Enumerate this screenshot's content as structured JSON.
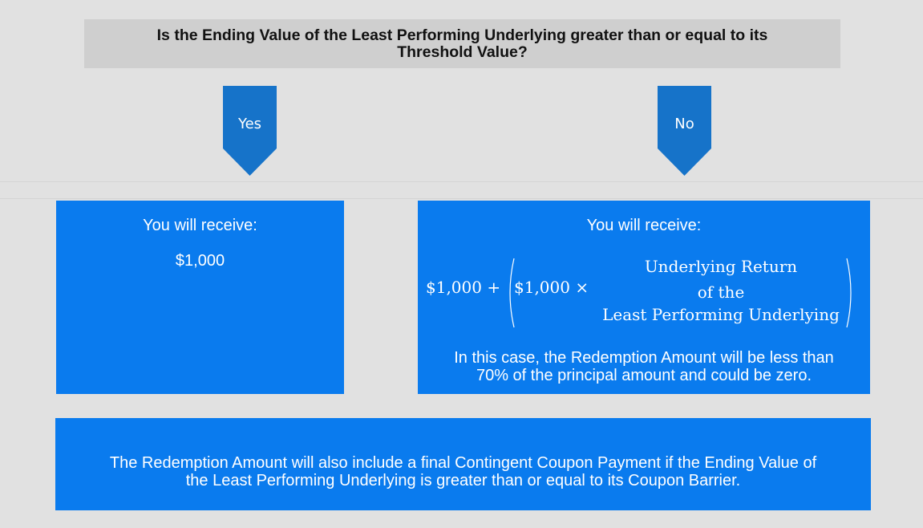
{
  "question": {
    "line1": "Is the Ending Value of the Least Performing Underlying greater than or equal to its",
    "line2": "Threshold Value?"
  },
  "branches": {
    "yes_label": "Yes",
    "no_label": "No"
  },
  "yes_box": {
    "heading": "You will receive:",
    "amount": "$1,000"
  },
  "no_box": {
    "heading": "You will receive:",
    "formula": {
      "left_term": "$1,000 +",
      "inner_term": "$1,000 ×",
      "numerator_line1": "Underlying Return",
      "numerator_line2": "of the",
      "numerator_line3": "Least Performing Underlying"
    },
    "note_line1": "In this case, the Redemption Amount will be less than",
    "note_line2": "70% of the principal amount and could be zero."
  },
  "bottom_box": {
    "line1": "The Redemption Amount will also include a final Contingent Coupon Payment if the Ending Value of",
    "line2": "the Least Performing Underlying is greater than or equal to its Coupon Barrier."
  },
  "colors": {
    "box_blue": "#0a7bee",
    "arrow_blue": "#1673c9",
    "background": "#e1e1e1",
    "question_gray": "#cfcfcf"
  }
}
